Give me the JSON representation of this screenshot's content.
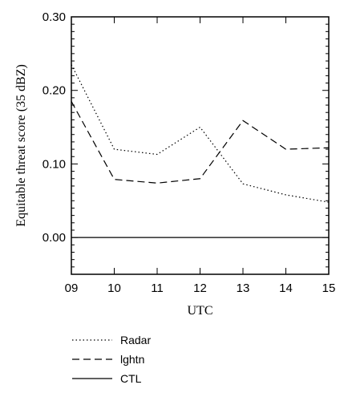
{
  "chart_data": {
    "type": "line",
    "xlabel": "UTC",
    "ylabel": "Equitable threat score (35 dBZ)",
    "x": [
      "09",
      "10",
      "11",
      "12",
      "13",
      "14",
      "15"
    ],
    "xlim": [
      9,
      15
    ],
    "ylim": [
      -0.05,
      0.3
    ],
    "yticks": [
      "0.00",
      "0.10",
      "0.20",
      "0.30"
    ],
    "yminor_step": 0.01,
    "grid": false,
    "legend_position": "below",
    "series": [
      {
        "name": "Radar",
        "style": "dotted",
        "values": [
          0.235,
          0.12,
          0.113,
          0.15,
          0.073,
          0.058,
          0.048
        ]
      },
      {
        "name": "lghtn",
        "style": "dashed",
        "values": [
          0.185,
          0.079,
          0.074,
          0.08,
          0.159,
          0.12,
          0.122
        ]
      },
      {
        "name": "CTL",
        "style": "solid",
        "values": [
          0.0,
          0.0,
          0.0,
          0.0,
          0.0,
          0.0,
          0.0
        ]
      }
    ]
  }
}
